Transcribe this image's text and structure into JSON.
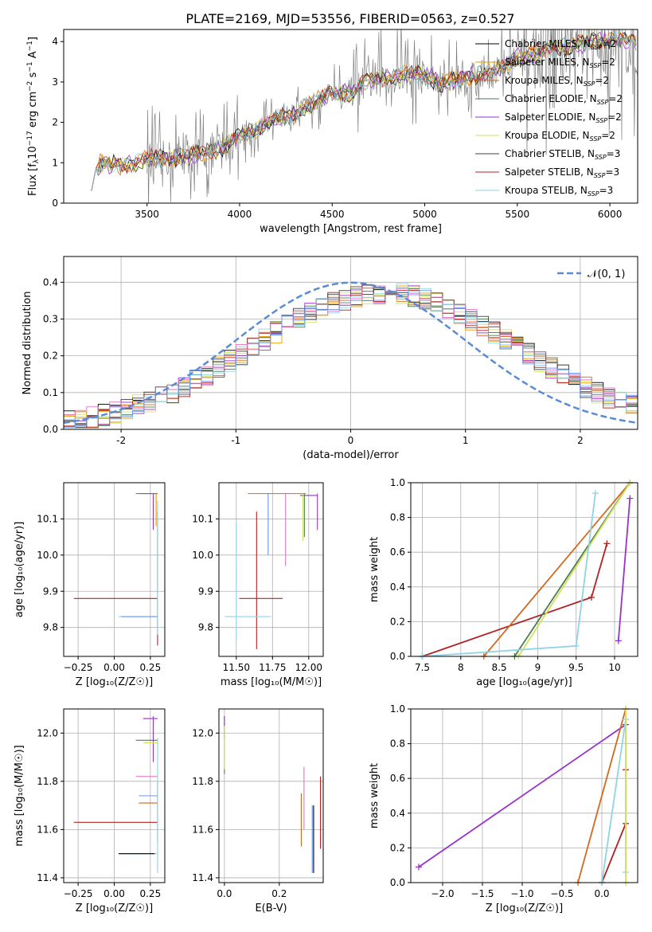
{
  "figure": {
    "title": "PLATE=2169, MJD=53556, FIBERID=0563, z=0.527"
  },
  "chart_data": [
    {
      "id": "spectrum",
      "type": "line",
      "xlabel": "wavelength [Angstrom, rest frame]",
      "ylabel_parts": [
        "Flux [f",
        "λ",
        "10",
        "−17",
        " erg cm",
        "−2",
        " s",
        "−1",
        " A",
        "−1",
        "]"
      ],
      "xlim": [
        3050,
        6150
      ],
      "ylim": [
        0,
        4.3
      ],
      "xticks": [
        3500,
        4000,
        4500,
        5000,
        5500,
        6000
      ],
      "yticks": [
        0,
        1,
        2,
        3,
        4
      ],
      "grid": false,
      "legend_position": "top-right",
      "series": [
        {
          "name": "Chabrier MILES",
          "nssp": "2",
          "color": "#000000"
        },
        {
          "name": "Salpeter MILES",
          "nssp": "2",
          "color": "#e69f00"
        },
        {
          "name": "Kroupa MILES",
          "nssp": "2",
          "color": "#d2691e"
        },
        {
          "name": "Chabrier ELODIE",
          "nssp": "2",
          "color": "#4a7c59"
        },
        {
          "name": "Salpeter ELODIE",
          "nssp": "2",
          "color": "#9932cc"
        },
        {
          "name": "Kroupa ELODIE",
          "nssp": "2",
          "color": "#d4e157"
        },
        {
          "name": "Chabrier STELIB",
          "nssp": "3",
          "color": "#404040"
        },
        {
          "name": "Salpeter STELIB",
          "nssp": "3",
          "color": "#b22222"
        },
        {
          "name": "Kroupa STELIB",
          "nssp": "3",
          "color": "#8fd3e8"
        }
      ],
      "data_series": {
        "x": [
          3200,
          3250,
          3300,
          3400,
          3500,
          3600,
          3700,
          3800,
          3900,
          4000,
          4100,
          4200,
          4300,
          4400,
          4500,
          4600,
          4700,
          4800,
          4900,
          5000,
          5100,
          5200,
          5300,
          5400,
          5500,
          5600,
          5700,
          5800,
          5900,
          6000,
          6100
        ],
        "y": [
          0.3,
          1.0,
          0.95,
          0.95,
          1.1,
          1.1,
          1.15,
          1.25,
          1.35,
          1.7,
          1.85,
          2.1,
          2.2,
          2.5,
          2.75,
          2.7,
          3.05,
          3.1,
          3.2,
          3.15,
          2.95,
          3.1,
          3.2,
          3.3,
          3.6,
          3.7,
          3.85,
          3.9,
          4.0,
          4.05,
          4.0
        ],
        "noise_from_x": 3500,
        "noise_color": "#808080"
      }
    },
    {
      "id": "residual-hist",
      "type": "line",
      "xlabel": "(data-model)/error",
      "ylabel": "Normed distribution",
      "xlim": [
        -2.5,
        2.5
      ],
      "ylim": [
        0,
        0.47
      ],
      "xticks": [
        -2,
        -1,
        0,
        1,
        2
      ],
      "yticks": [
        0.0,
        0.1,
        0.2,
        0.3,
        0.4
      ],
      "grid": true,
      "legend_position": "top-right",
      "legend": [
        {
          "name": "𝒩(0, 1)",
          "color": "#5b8bd6",
          "style": "dashed"
        }
      ],
      "hist_colors": [
        "#000000",
        "#e69f00",
        "#d2691e",
        "#4a7c59",
        "#9932cc",
        "#d4e157",
        "#404040",
        "#b22222",
        "#8fd3e8",
        "#e377c2",
        "#6495ed"
      ]
    },
    {
      "id": "age-vs-Z",
      "type": "scatter",
      "xlabel": "Z [log₁₀(Z/Z☉)]",
      "ylabel": "age  [log₁₀(age/yr)]",
      "xlim": [
        -0.35,
        0.35
      ],
      "ylim": [
        9.72,
        10.2
      ],
      "xticks": [
        -0.25,
        0.0,
        0.25
      ],
      "xtick_labels": [
        "−0.25",
        "0.00",
        "0.25"
      ],
      "yticks": [
        9.8,
        9.9,
        10.0,
        10.1
      ],
      "grid": true
    },
    {
      "id": "age-vs-mass",
      "type": "scatter",
      "xlabel": "mass [log₁₀(M/M☉)]",
      "xlim": [
        11.38,
        12.1
      ],
      "ylim": [
        9.72,
        10.2
      ],
      "xticks": [
        11.5,
        11.75,
        12.0
      ],
      "xtick_labels": [
        "11.50",
        "11.75",
        "12.00"
      ],
      "yticks": [
        9.8,
        9.9,
        10.0,
        10.1
      ],
      "grid": true
    },
    {
      "id": "weight-vs-age",
      "type": "line",
      "xlabel": "age  [log₁₀(age/yr)]",
      "ylabel": "mass weight",
      "xlim": [
        7.35,
        10.3
      ],
      "ylim": [
        0,
        1.0
      ],
      "xticks": [
        7.5,
        8.0,
        8.5,
        9.0,
        9.5,
        10.0
      ],
      "yticks": [
        0.0,
        0.2,
        0.4,
        0.6,
        0.8,
        1.0
      ],
      "grid": true,
      "series": [
        {
          "color": "#b22222",
          "x": [
            7.5,
            9.7,
            9.9
          ],
          "y": [
            0.0,
            0.34,
            0.65
          ]
        },
        {
          "color": "#d2691e",
          "x": [
            8.3,
            10.2
          ],
          "y": [
            0.0,
            1.0
          ]
        },
        {
          "color": "#4a7c59",
          "x": [
            8.7,
            10.2
          ],
          "y": [
            0.0,
            1.0
          ]
        },
        {
          "color": "#d4e157",
          "x": [
            8.75,
            10.2
          ],
          "y": [
            0.0,
            1.0
          ]
        },
        {
          "color": "#8fd3e8",
          "x": [
            7.5,
            9.5,
            9.75
          ],
          "y": [
            0.0,
            0.06,
            0.94
          ]
        },
        {
          "color": "#9932cc",
          "x": [
            10.05,
            10.2
          ],
          "y": [
            0.09,
            0.91
          ]
        }
      ]
    },
    {
      "id": "mass-vs-Z",
      "type": "scatter",
      "xlabel": "Z [log₁₀(Z/Z☉)]",
      "ylabel": "mass [log₁₀(M/M☉)]",
      "xlim": [
        -0.35,
        0.35
      ],
      "ylim": [
        11.38,
        12.1
      ],
      "xticks": [
        -0.25,
        0.0,
        0.25
      ],
      "xtick_labels": [
        "−0.25",
        "0.00",
        "0.25"
      ],
      "yticks": [
        11.4,
        11.6,
        11.8,
        12.0
      ],
      "grid": true
    },
    {
      "id": "mass-vs-ebv",
      "type": "scatter",
      "xlabel": "E(B-V)",
      "xlim": [
        -0.02,
        0.36
      ],
      "ylim": [
        11.38,
        12.1
      ],
      "xticks": [
        0.0,
        0.2
      ],
      "xtick_labels": [
        "0.0",
        "0.2"
      ],
      "yticks": [
        11.4,
        11.6,
        11.8,
        12.0
      ],
      "grid": true
    },
    {
      "id": "weight-vs-Z",
      "type": "line",
      "xlabel": "Z [log₁₀(Z/Z☉)]",
      "ylabel": "mass weight",
      "xlim": [
        -2.4,
        0.45
      ],
      "ylim": [
        0,
        1.0
      ],
      "xticks": [
        -2.0,
        -1.5,
        -1.0,
        -0.5,
        0.0
      ],
      "xtick_labels": [
        "−2.0",
        "−1.5",
        "−1.0",
        "−0.5",
        "0.0"
      ],
      "yticks": [
        0.0,
        0.2,
        0.4,
        0.6,
        0.8,
        1.0
      ],
      "grid": true,
      "series": [
        {
          "color": "#9932cc",
          "x": [
            -2.3,
            0.3
          ],
          "y": [
            0.09,
            0.91
          ]
        },
        {
          "color": "#d2691e",
          "x": [
            -0.3,
            0.3
          ],
          "y": [
            0.0,
            1.0
          ]
        },
        {
          "color": "#b22222",
          "x": [
            0.0,
            0.3,
            0.3
          ],
          "y": [
            0.0,
            0.34,
            0.65
          ]
        },
        {
          "color": "#8fd3e8",
          "x": [
            0.0,
            0.3,
            0.3
          ],
          "y": [
            0.0,
            0.94,
            0.06
          ]
        },
        {
          "color": "#d4e157",
          "x": [
            0.3,
            0.3
          ],
          "y": [
            0.0,
            1.0
          ]
        }
      ]
    }
  ]
}
